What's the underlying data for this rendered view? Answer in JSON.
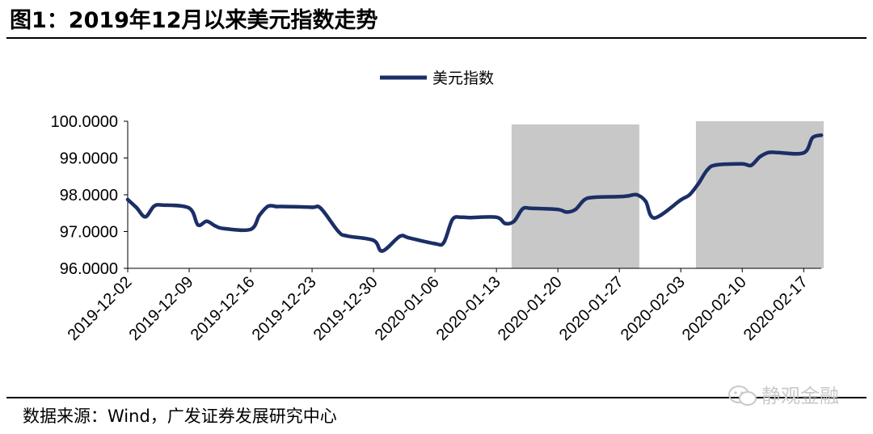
{
  "title": "图1：2019年12月以来美元指数走势",
  "source": "数据来源：Wind，广发证券发展研究中心",
  "watermark": "静观金融",
  "colors": {
    "line": "#1b2f66",
    "shade": "#c8c8c8",
    "axis": "#000000"
  },
  "chart_data": {
    "type": "line",
    "title": "",
    "xlabel": "",
    "ylabel": "",
    "ylim": [
      96,
      100
    ],
    "yticks": [
      "96.0000",
      "97.0000",
      "98.0000",
      "99.0000",
      "100.0000"
    ],
    "xticks": [
      "2019-12-02",
      "2019-12-09",
      "2019-12-16",
      "2019-12-23",
      "2019-12-30",
      "2020-01-06",
      "2020-01-13",
      "2020-01-20",
      "2020-01-27",
      "2020-02-03",
      "2020-02-10",
      "2020-02-17"
    ],
    "legend": {
      "position": "top-center",
      "entries": [
        "美元指数"
      ]
    },
    "grid": false,
    "shaded_ranges": [
      {
        "start": "2020-01-15",
        "end": "2020-01-29"
      },
      {
        "start": "2020-02-05",
        "end": "2020-02-19"
      }
    ],
    "series": [
      {
        "name": "美元指数",
        "x": [
          "2019-12-02",
          "2019-12-03",
          "2019-12-04",
          "2019-12-05",
          "2019-12-06",
          "2019-12-09",
          "2019-12-10",
          "2019-12-11",
          "2019-12-12",
          "2019-12-13",
          "2019-12-16",
          "2019-12-17",
          "2019-12-18",
          "2019-12-19",
          "2019-12-20",
          "2019-12-23",
          "2019-12-24",
          "2019-12-26",
          "2019-12-27",
          "2019-12-30",
          "2019-12-31",
          "2020-01-02",
          "2020-01-03",
          "2020-01-06",
          "2020-01-07",
          "2020-01-08",
          "2020-01-09",
          "2020-01-10",
          "2020-01-13",
          "2020-01-14",
          "2020-01-15",
          "2020-01-16",
          "2020-01-17",
          "2020-01-20",
          "2020-01-21",
          "2020-01-22",
          "2020-01-23",
          "2020-01-24",
          "2020-01-27",
          "2020-01-28",
          "2020-01-29",
          "2020-01-30",
          "2020-01-31",
          "2020-02-03",
          "2020-02-04",
          "2020-02-05",
          "2020-02-06",
          "2020-02-07",
          "2020-02-10",
          "2020-02-11",
          "2020-02-12",
          "2020-02-13",
          "2020-02-14",
          "2020-02-17",
          "2020-02-18",
          "2020-02-19"
        ],
        "values": [
          97.87,
          97.65,
          97.4,
          97.69,
          97.72,
          97.64,
          97.18,
          97.28,
          97.15,
          97.08,
          97.06,
          97.44,
          97.69,
          97.68,
          97.68,
          97.66,
          97.63,
          97.0,
          96.88,
          96.76,
          96.47,
          96.87,
          96.83,
          96.67,
          96.7,
          97.33,
          97.39,
          97.38,
          97.39,
          97.22,
          97.28,
          97.62,
          97.63,
          97.6,
          97.53,
          97.6,
          97.86,
          97.93,
          97.95,
          97.97,
          98.0,
          97.82,
          97.37,
          97.86,
          98.0,
          98.3,
          98.67,
          98.81,
          98.84,
          98.8,
          99.03,
          99.15,
          99.15,
          99.14,
          99.55,
          99.62
        ]
      }
    ]
  }
}
